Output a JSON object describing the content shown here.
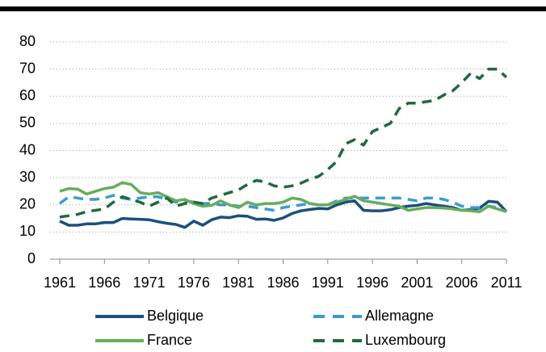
{
  "chart_data": {
    "type": "line",
    "x": [
      1961,
      1962,
      1963,
      1964,
      1965,
      1966,
      1967,
      1968,
      1969,
      1970,
      1971,
      1972,
      1973,
      1974,
      1975,
      1976,
      1977,
      1978,
      1979,
      1980,
      1981,
      1982,
      1983,
      1984,
      1985,
      1986,
      1987,
      1988,
      1989,
      1990,
      1991,
      1992,
      1993,
      1994,
      1995,
      1996,
      1997,
      1998,
      1999,
      2000,
      2001,
      2002,
      2003,
      2004,
      2005,
      2006,
      2007,
      2008,
      2009,
      2010,
      2011
    ],
    "series": [
      {
        "name": "Belgique",
        "color": "#1b4f7c",
        "dashed": false,
        "values": [
          14,
          12.5,
          12.5,
          13,
          13,
          13.5,
          13.5,
          15,
          14.8,
          14.7,
          14.5,
          13.8,
          13.2,
          12.8,
          11.7,
          14,
          12.5,
          14.5,
          15.5,
          15.3,
          16,
          15.8,
          14.7,
          14.8,
          14.3,
          15.2,
          16.8,
          17.8,
          18.3,
          18.7,
          18.5,
          20,
          21,
          21.5,
          18,
          17.8,
          17.8,
          18.2,
          19,
          19.5,
          19.8,
          20.5,
          20,
          19.5,
          19,
          18,
          18.2,
          18.8,
          21.3,
          21,
          17.5
        ]
      },
      {
        "name": "Allemagne",
        "color": "#3b9ad6",
        "dashed": true,
        "values": [
          20.5,
          23,
          22.5,
          22,
          22,
          22.5,
          23.5,
          22.5,
          22,
          22.5,
          23,
          23,
          22,
          21,
          21.5,
          21,
          20.5,
          20.5,
          20,
          20,
          19.5,
          19.5,
          19,
          18.5,
          18,
          19,
          19.5,
          20,
          20.5,
          20,
          20,
          21.5,
          22.5,
          22.5,
          22.5,
          22.5,
          22.5,
          22.5,
          22.5,
          22,
          21.5,
          22.5,
          22.5,
          22,
          21,
          19.5,
          19,
          19,
          19.5,
          19,
          17.5
        ]
      },
      {
        "name": "France",
        "color": "#67ad5b",
        "dashed": false,
        "values": [
          25,
          26,
          25.8,
          24,
          25,
          26,
          26.5,
          28.2,
          27.5,
          24.5,
          24,
          24.5,
          23,
          21.5,
          22,
          20.5,
          19.5,
          19.8,
          21.5,
          20,
          19,
          21,
          20,
          20.5,
          20.5,
          21,
          22.5,
          22,
          20.5,
          20,
          20,
          21,
          22,
          23.2,
          21.5,
          21,
          20.5,
          20,
          19.5,
          18,
          18.5,
          19,
          19,
          18.8,
          18.5,
          18,
          17.8,
          17.5,
          19.5,
          18.5,
          17.5
        ]
      },
      {
        "name": "Luxembourg",
        "color": "#1d6b3b",
        "dashed": true,
        "values": [
          15.5,
          16,
          16.5,
          17.5,
          18,
          18.5,
          21,
          23,
          22,
          21,
          19.5,
          21,
          22.5,
          19.5,
          20.5,
          21,
          20.5,
          22.5,
          23.5,
          24.5,
          25.5,
          27.5,
          29,
          28.5,
          27,
          26.5,
          27,
          28,
          29.5,
          30.5,
          33,
          36,
          42.5,
          44,
          42,
          47,
          48.5,
          50,
          55.5,
          57.5,
          57.5,
          58,
          58.5,
          60.5,
          62,
          65,
          68.5,
          66.5,
          70,
          70,
          67
        ]
      }
    ],
    "xlim": [
      1961,
      2011
    ],
    "xticks": [
      1961,
      1966,
      1971,
      1976,
      1981,
      1986,
      1991,
      1996,
      2001,
      2006,
      2011
    ],
    "ylim": [
      0,
      80
    ],
    "yticks": [
      0,
      10,
      20,
      30,
      40,
      50,
      60,
      70,
      80
    ],
    "grid": true,
    "legend": "bottom"
  }
}
